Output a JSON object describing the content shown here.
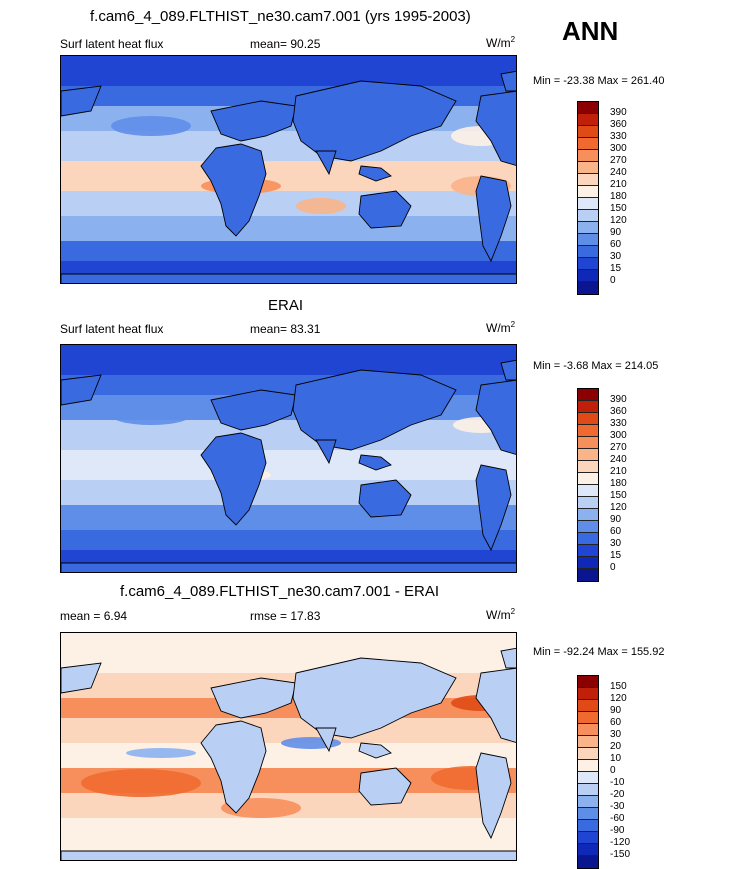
{
  "header": {
    "top_title": "f.cam6_4_089.FLTHIST_ne30.cam7.001 (yrs 1995-2003)",
    "season": "ANN"
  },
  "panels": [
    {
      "title": "",
      "left_label": "Surf latent heat flux",
      "center_label": "mean=  90.25",
      "units": "W/m",
      "units_sup": "2",
      "minmax": "Min = -23.38 Max = 261.40"
    },
    {
      "title": "ERAI",
      "left_label": "Surf latent heat flux",
      "center_label": "mean=  83.31",
      "units": "W/m",
      "units_sup": "2",
      "minmax": "Min =  -3.68 Max = 214.05"
    },
    {
      "title": "f.cam6_4_089.FLTHIST_ne30.cam7.001 - ERAI",
      "left_label": "mean =   6.94",
      "center_label": "rmse =  17.83",
      "units": "W/m",
      "units_sup": "2",
      "minmax": "Min = -92.24 Max = 155.92"
    }
  ],
  "colorbars": {
    "field": {
      "labels": [
        "390",
        "360",
        "330",
        "300",
        "270",
        "240",
        "210",
        "180",
        "150",
        "120",
        "90",
        "60",
        "30",
        "15",
        "0"
      ],
      "colors": [
        "#8b0000",
        "#c0200a",
        "#e04a16",
        "#f06a30",
        "#f78f5c",
        "#fab48a",
        "#fbd6bc",
        "#fdf1e6",
        "#dfe8f8",
        "#b9cff4",
        "#8cb1ef",
        "#5f8ee8",
        "#3a6adf",
        "#1f45d2",
        "#1028b8",
        "#0a1590"
      ]
    },
    "diff": {
      "labels": [
        "150",
        "120",
        "90",
        "60",
        "30",
        "20",
        "10",
        "0",
        "-10",
        "-20",
        "-30",
        "-60",
        "-90",
        "-120",
        "-150"
      ],
      "colors": [
        "#8b0000",
        "#c0200a",
        "#e04a16",
        "#f06a30",
        "#f78f5c",
        "#fab48a",
        "#fbd6bc",
        "#fdf1e6",
        "#dfe8f8",
        "#b9cff4",
        "#8cb1ef",
        "#5f8ee8",
        "#3a6adf",
        "#1f45d2",
        "#1028b8",
        "#0a1590"
      ]
    }
  }
}
